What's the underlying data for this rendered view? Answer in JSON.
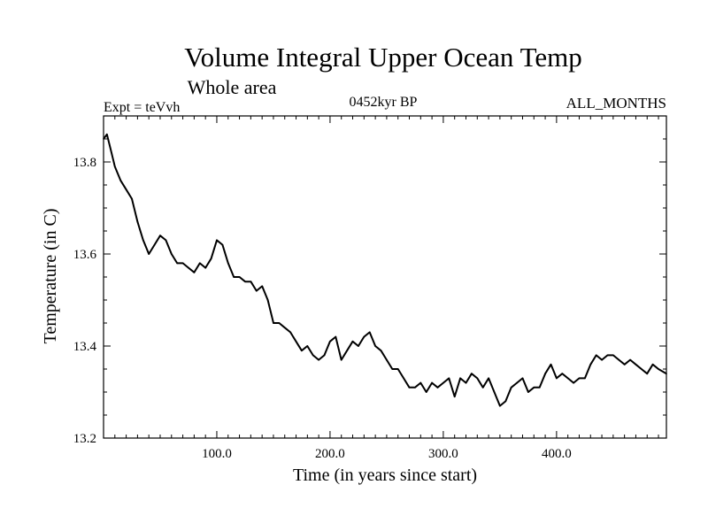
{
  "chart_data": {
    "type": "line",
    "title": "Volume Integral Upper Ocean Temp",
    "subtitle": "Whole area",
    "annotations": {
      "left": "Expt = teVvh",
      "center": "0452kyr BP",
      "right": "ALL_MONTHS"
    },
    "xlabel": "Time (in years since start)",
    "ylabel": "Temperature (in C)",
    "xlim": [
      0,
      497
    ],
    "ylim": [
      13.2,
      13.9
    ],
    "xticks": [
      100,
      200,
      300,
      400
    ],
    "xtick_labels": [
      "100.0",
      "200.0",
      "300.0",
      "400.0"
    ],
    "yticks": [
      13.2,
      13.4,
      13.6,
      13.8
    ],
    "ytick_labels": [
      "13.2",
      "13.4",
      "13.6",
      "13.8"
    ],
    "grid": false,
    "series": [
      {
        "color": "#000000",
        "x": [
          0,
          3,
          6,
          10,
          15,
          20,
          25,
          30,
          35,
          40,
          45,
          50,
          55,
          60,
          65,
          70,
          75,
          80,
          85,
          90,
          95,
          100,
          105,
          110,
          115,
          120,
          125,
          130,
          135,
          140,
          145,
          150,
          155,
          160,
          165,
          170,
          175,
          180,
          185,
          190,
          195,
          200,
          205,
          210,
          215,
          220,
          225,
          230,
          235,
          240,
          245,
          250,
          255,
          260,
          265,
          270,
          275,
          280,
          285,
          290,
          295,
          300,
          305,
          310,
          315,
          320,
          325,
          330,
          335,
          340,
          345,
          350,
          355,
          360,
          365,
          370,
          375,
          380,
          385,
          390,
          395,
          400,
          405,
          410,
          415,
          420,
          425,
          430,
          435,
          440,
          445,
          450,
          455,
          460,
          465,
          470,
          475,
          480,
          485,
          490,
          497
        ],
        "y": [
          13.85,
          13.86,
          13.83,
          13.79,
          13.76,
          13.74,
          13.72,
          13.67,
          13.63,
          13.6,
          13.62,
          13.64,
          13.63,
          13.6,
          13.58,
          13.58,
          13.57,
          13.56,
          13.58,
          13.57,
          13.59,
          13.63,
          13.62,
          13.58,
          13.55,
          13.55,
          13.54,
          13.54,
          13.52,
          13.53,
          13.5,
          13.45,
          13.45,
          13.44,
          13.43,
          13.41,
          13.39,
          13.4,
          13.38,
          13.37,
          13.38,
          13.41,
          13.42,
          13.37,
          13.39,
          13.41,
          13.4,
          13.42,
          13.43,
          13.4,
          13.39,
          13.37,
          13.35,
          13.35,
          13.33,
          13.31,
          13.31,
          13.32,
          13.3,
          13.32,
          13.31,
          13.32,
          13.33,
          13.29,
          13.33,
          13.32,
          13.34,
          13.33,
          13.31,
          13.33,
          13.3,
          13.27,
          13.28,
          13.31,
          13.32,
          13.33,
          13.3,
          13.31,
          13.31,
          13.34,
          13.36,
          13.33,
          13.34,
          13.33,
          13.32,
          13.33,
          13.33,
          13.36,
          13.38,
          13.37,
          13.38,
          13.38,
          13.37,
          13.36,
          13.37,
          13.36,
          13.35,
          13.34,
          13.36,
          13.35,
          13.34
        ]
      }
    ]
  }
}
